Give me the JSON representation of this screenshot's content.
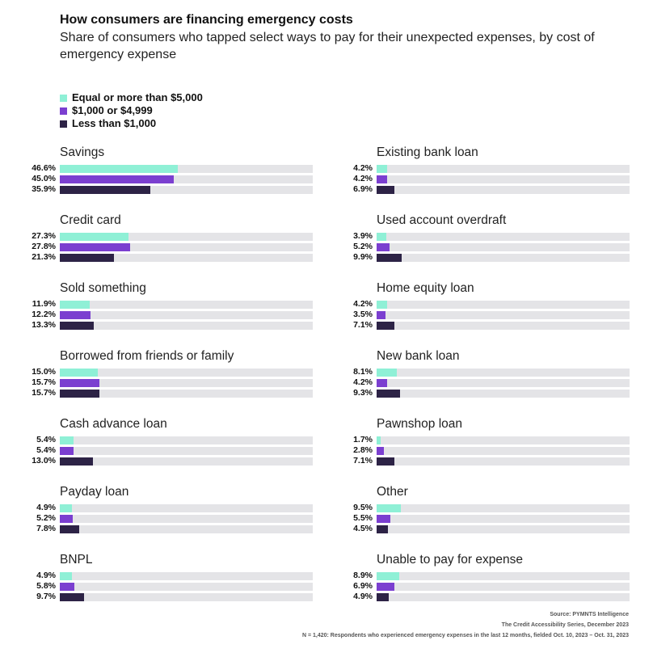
{
  "chart_data": {
    "type": "bar",
    "orientation": "horizontal",
    "title": "How consumers are financing emergency costs",
    "subtitle": "Share of consumers who tapped select ways to pay for their unexpected expenses, by cost of emergency expense",
    "xlim": [
      0,
      100
    ],
    "legend_placement": "top-left",
    "series": [
      {
        "name": "Equal or more than $5,000",
        "color": "#8ff0d6"
      },
      {
        "name": "$1,000 or $4,999",
        "color": "#7b3fd0"
      },
      {
        "name": "Less than $1,000",
        "color": "#2d2346"
      }
    ],
    "track_color": "#e4e4e7",
    "categories": [
      {
        "label": "Savings",
        "values": [
          46.6,
          45.0,
          35.9
        ]
      },
      {
        "label": "Credit card",
        "values": [
          27.3,
          27.8,
          21.3
        ]
      },
      {
        "label": "Sold something",
        "values": [
          11.9,
          12.2,
          13.3
        ]
      },
      {
        "label": "Borrowed from friends or family",
        "values": [
          15.0,
          15.7,
          15.7
        ]
      },
      {
        "label": "Cash advance loan",
        "values": [
          5.4,
          5.4,
          13.0
        ]
      },
      {
        "label": "Payday loan",
        "values": [
          4.9,
          5.2,
          7.8
        ]
      },
      {
        "label": "BNPL",
        "values": [
          4.9,
          5.8,
          9.7
        ]
      },
      {
        "label": "Existing bank loan",
        "values": [
          4.2,
          4.2,
          6.9
        ]
      },
      {
        "label": "Used account overdraft",
        "values": [
          3.9,
          5.2,
          9.9
        ]
      },
      {
        "label": "Home equity loan",
        "values": [
          4.2,
          3.5,
          7.1
        ]
      },
      {
        "label": "New bank loan",
        "values": [
          8.1,
          4.2,
          9.3
        ]
      },
      {
        "label": "Pawnshop loan",
        "values": [
          1.7,
          2.8,
          7.1
        ]
      },
      {
        "label": "Other",
        "values": [
          9.5,
          5.5,
          4.5
        ]
      },
      {
        "label": "Unable to pay for expense",
        "values": [
          8.9,
          6.9,
          4.9
        ]
      }
    ]
  },
  "footer": {
    "source": "Source: PYMNTS Intelligence",
    "series": "The Credit Accessibility Series, December 2023",
    "note": "N = 1,420: Respondents who experienced emergency expenses in the last 12 months, fielded Oct. 10, 2023 – Oct. 31, 2023"
  }
}
